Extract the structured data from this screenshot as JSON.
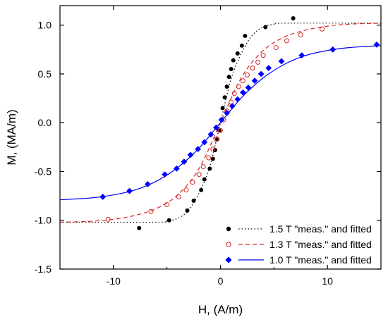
{
  "chart_data": {
    "type": "line",
    "xlabel": "H, (A/m)",
    "ylabel": "M, (MA/m)",
    "xlim": [
      -15,
      15
    ],
    "ylim": [
      -1.5,
      1.2
    ],
    "xticks": [
      -10,
      0,
      10
    ],
    "yticks": [
      -1.5,
      -1.0,
      -0.5,
      0.0,
      0.5,
      1.0
    ],
    "ytick_labels": [
      "-1.5",
      "-1.0",
      "-0.5",
      "0.0",
      "0.5",
      "1.0"
    ],
    "xtick_labels": [
      "-10",
      "0",
      "10"
    ],
    "legend_position": "bottom-right",
    "series": [
      {
        "name": "1.5 T \"meas.\" and fitted",
        "color": "#000000",
        "marker": "filled-circle",
        "line_style": "dotted",
        "points": [
          {
            "x": -7.6,
            "y": -1.08
          },
          {
            "x": -4.8,
            "y": -1.0
          },
          {
            "x": -3.1,
            "y": -0.9
          },
          {
            "x": -2.5,
            "y": -0.8
          },
          {
            "x": -1.8,
            "y": -0.69
          },
          {
            "x": -1.5,
            "y": -0.58
          },
          {
            "x": -1.0,
            "y": -0.47
          },
          {
            "x": -0.7,
            "y": -0.37
          },
          {
            "x": -0.5,
            "y": -0.28
          },
          {
            "x": -0.3,
            "y": -0.17
          },
          {
            "x": -0.1,
            "y": -0.08
          },
          {
            "x": 0.1,
            "y": 0.03
          },
          {
            "x": 0.2,
            "y": 0.15
          },
          {
            "x": 0.4,
            "y": 0.26
          },
          {
            "x": 0.6,
            "y": 0.37
          },
          {
            "x": 0.8,
            "y": 0.47
          },
          {
            "x": 1.0,
            "y": 0.55
          },
          {
            "x": 1.2,
            "y": 0.64
          },
          {
            "x": 1.6,
            "y": 0.71
          },
          {
            "x": 2.0,
            "y": 0.79
          },
          {
            "x": 2.3,
            "y": 0.89
          },
          {
            "x": 4.2,
            "y": 0.98
          },
          {
            "x": 6.8,
            "y": 1.07
          }
        ],
        "fit": [
          {
            "x": -15,
            "y": -1.02
          },
          {
            "x": -6,
            "y": -1.02
          },
          {
            "x": -5,
            "y": -1.01
          },
          {
            "x": -4,
            "y": -0.98
          },
          {
            "x": -3,
            "y": -0.9
          },
          {
            "x": -2,
            "y": -0.72
          },
          {
            "x": -1,
            "y": -0.45
          },
          {
            "x": 0,
            "y": 0.0
          },
          {
            "x": 1,
            "y": 0.45
          },
          {
            "x": 2,
            "y": 0.72
          },
          {
            "x": 3,
            "y": 0.9
          },
          {
            "x": 4,
            "y": 0.98
          },
          {
            "x": 5,
            "y": 1.01
          },
          {
            "x": 6,
            "y": 1.02
          },
          {
            "x": 15,
            "y": 1.02
          }
        ]
      },
      {
        "name": "1.3 T \"meas.\" and fitted",
        "color": "#d62728",
        "marker": "open-circle",
        "line_style": "dashed",
        "points": [
          {
            "x": -10.5,
            "y": -0.99
          },
          {
            "x": -6.5,
            "y": -0.91
          },
          {
            "x": -5.0,
            "y": -0.84
          },
          {
            "x": -3.9,
            "y": -0.76
          },
          {
            "x": -3.2,
            "y": -0.69
          },
          {
            "x": -2.6,
            "y": -0.61
          },
          {
            "x": -2.0,
            "y": -0.53
          },
          {
            "x": -1.6,
            "y": -0.45
          },
          {
            "x": -1.1,
            "y": -0.36
          },
          {
            "x": -0.7,
            "y": -0.27
          },
          {
            "x": -0.4,
            "y": -0.17
          },
          {
            "x": 0.0,
            "y": -0.08
          },
          {
            "x": 0.3,
            "y": 0.03
          },
          {
            "x": 0.6,
            "y": 0.12
          },
          {
            "x": 1.0,
            "y": 0.21
          },
          {
            "x": 1.3,
            "y": 0.3
          },
          {
            "x": 1.7,
            "y": 0.37
          },
          {
            "x": 2.1,
            "y": 0.43
          },
          {
            "x": 2.5,
            "y": 0.49
          },
          {
            "x": 3.0,
            "y": 0.56
          },
          {
            "x": 3.5,
            "y": 0.62
          },
          {
            "x": 4.0,
            "y": 0.69
          },
          {
            "x": 5.2,
            "y": 0.77
          },
          {
            "x": 6.2,
            "y": 0.84
          },
          {
            "x": 7.5,
            "y": 0.9
          },
          {
            "x": 9.5,
            "y": 0.96
          }
        ],
        "fit": [
          {
            "x": -15,
            "y": -1.02
          },
          {
            "x": -12,
            "y": -1.01
          },
          {
            "x": -10,
            "y": -0.99
          },
          {
            "x": -8,
            "y": -0.95
          },
          {
            "x": -6,
            "y": -0.88
          },
          {
            "x": -4,
            "y": -0.74
          },
          {
            "x": -2,
            "y": -0.47
          },
          {
            "x": 0,
            "y": 0.0
          },
          {
            "x": 2,
            "y": 0.47
          },
          {
            "x": 4,
            "y": 0.74
          },
          {
            "x": 6,
            "y": 0.88
          },
          {
            "x": 8,
            "y": 0.95
          },
          {
            "x": 10,
            "y": 0.99
          },
          {
            "x": 12,
            "y": 1.01
          },
          {
            "x": 15,
            "y": 1.02
          }
        ]
      },
      {
        "name": "1.0 T \"meas.\" and fitted",
        "color": "#0000ff",
        "marker": "filled-diamond",
        "line_style": "solid",
        "points": [
          {
            "x": -11.0,
            "y": -0.76
          },
          {
            "x": -8.5,
            "y": -0.7
          },
          {
            "x": -6.8,
            "y": -0.63
          },
          {
            "x": -5.2,
            "y": -0.53
          },
          {
            "x": -4.1,
            "y": -0.47
          },
          {
            "x": -3.4,
            "y": -0.4
          },
          {
            "x": -2.8,
            "y": -0.33
          },
          {
            "x": -2.1,
            "y": -0.27
          },
          {
            "x": -1.5,
            "y": -0.2
          },
          {
            "x": -0.9,
            "y": -0.12
          },
          {
            "x": -0.4,
            "y": -0.05
          },
          {
            "x": 0.1,
            "y": 0.03
          },
          {
            "x": 0.6,
            "y": 0.1
          },
          {
            "x": 1.1,
            "y": 0.17
          },
          {
            "x": 1.6,
            "y": 0.24
          },
          {
            "x": 2.1,
            "y": 0.31
          },
          {
            "x": 2.6,
            "y": 0.36
          },
          {
            "x": 3.2,
            "y": 0.43
          },
          {
            "x": 3.8,
            "y": 0.5
          },
          {
            "x": 4.5,
            "y": 0.56
          },
          {
            "x": 5.7,
            "y": 0.63
          },
          {
            "x": 7.6,
            "y": 0.69
          },
          {
            "x": 10.5,
            "y": 0.75
          },
          {
            "x": 14.6,
            "y": 0.8
          }
        ],
        "fit": [
          {
            "x": -15,
            "y": -0.79
          },
          {
            "x": -12,
            "y": -0.77
          },
          {
            "x": -10,
            "y": -0.74
          },
          {
            "x": -8,
            "y": -0.69
          },
          {
            "x": -6,
            "y": -0.6
          },
          {
            "x": -4,
            "y": -0.46
          },
          {
            "x": -2,
            "y": -0.26
          },
          {
            "x": 0,
            "y": 0.0
          },
          {
            "x": 2,
            "y": 0.26
          },
          {
            "x": 4,
            "y": 0.46
          },
          {
            "x": 6,
            "y": 0.6
          },
          {
            "x": 8,
            "y": 0.69
          },
          {
            "x": 10,
            "y": 0.74
          },
          {
            "x": 12,
            "y": 0.77
          },
          {
            "x": 15,
            "y": 0.79
          }
        ]
      }
    ]
  }
}
